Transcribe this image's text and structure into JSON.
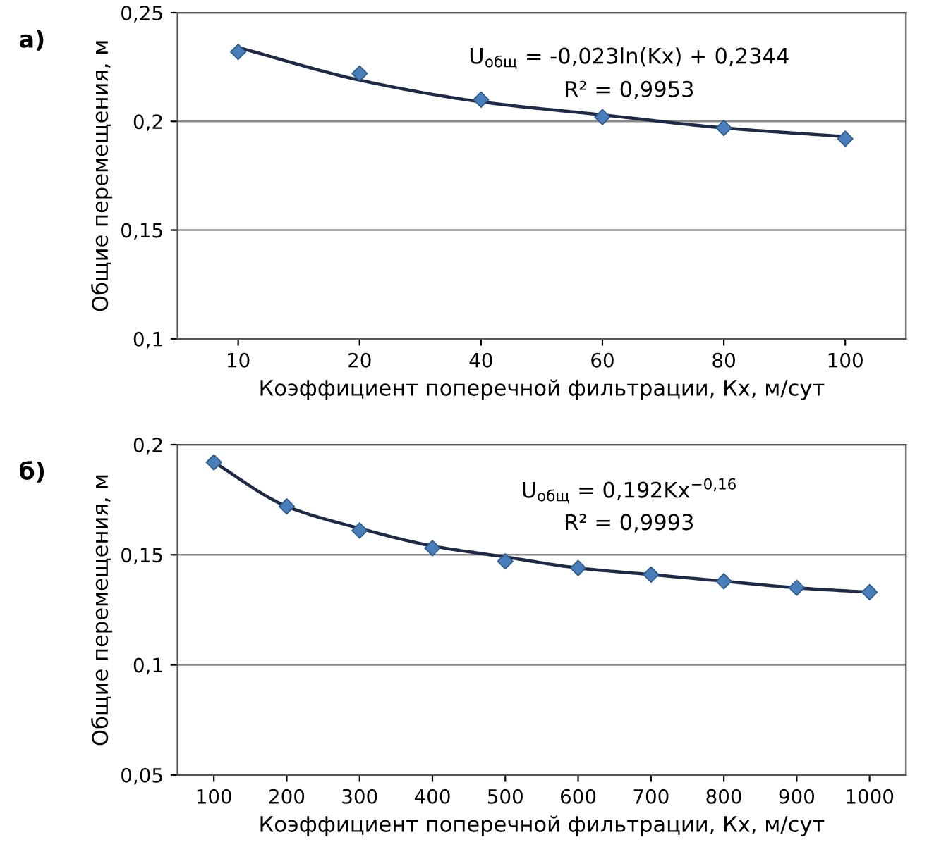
{
  "chart_data": [
    {
      "type": "scatter",
      "xlabel": "Коэффициент поперечной фильтрации, Кх, м/сут",
      "ylabel": "Общие перемещения, м",
      "categories": [
        "10",
        "20",
        "40",
        "60",
        "80",
        "100"
      ],
      "series": [
        {
          "color": "#4a7ebb",
          "marker": "diamond",
          "values": [
            0.232,
            0.222,
            0.21,
            0.202,
            0.197,
            0.192
          ]
        },
        {
          "type": "line",
          "color": "#1f2a44",
          "marker": "none",
          "line_style": "solid",
          "values": [
            0.234,
            0.219,
            0.209,
            0.203,
            0.197,
            0.193
          ]
        }
      ],
      "ylim": [
        0.1,
        0.25
      ],
      "yticks": [
        {
          "value": 0.1,
          "label": "0,1"
        },
        {
          "value": 0.15,
          "label": "0,15"
        },
        {
          "value": 0.2,
          "label": "0,2"
        },
        {
          "value": 0.25,
          "label": "0,25"
        }
      ],
      "grid": "y",
      "annotations": [
        "а)",
        "U$_{общ}$ = -0,023ln(Kx) + 0,2344",
        "R² = 0,9953"
      ]
    },
    {
      "type": "scatter",
      "xlabel": "Коэффициент поперечной фильтрации, Кх, м/сут",
      "ylabel": "Общие перемещения, м",
      "categories": [
        "100",
        "200",
        "300",
        "400",
        "500",
        "600",
        "700",
        "800",
        "900",
        "1000"
      ],
      "series": [
        {
          "color": "#4a7ebb",
          "marker": "diamond",
          "values": [
            0.192,
            0.172,
            0.161,
            0.153,
            0.147,
            0.144,
            0.141,
            0.138,
            0.135,
            0.133
          ]
        },
        {
          "type": "line",
          "color": "#1f2a44",
          "marker": "none",
          "line_style": "solid",
          "values": [
            0.192,
            0.172,
            0.162,
            0.154,
            0.149,
            0.144,
            0.141,
            0.138,
            0.135,
            0.133
          ]
        }
      ],
      "ylim": [
        0.05,
        0.2
      ],
      "yticks": [
        {
          "value": 0.05,
          "label": "0,05"
        },
        {
          "value": 0.1,
          "label": "0,1"
        },
        {
          "value": 0.15,
          "label": "0,15"
        },
        {
          "value": 0.2,
          "label": "0,2"
        }
      ],
      "grid": "y",
      "annotations": [
        "б)",
        "U$_{общ}$ = 0,192Kx$^{−0,16}$",
        "R² = 0,9993"
      ]
    }
  ]
}
